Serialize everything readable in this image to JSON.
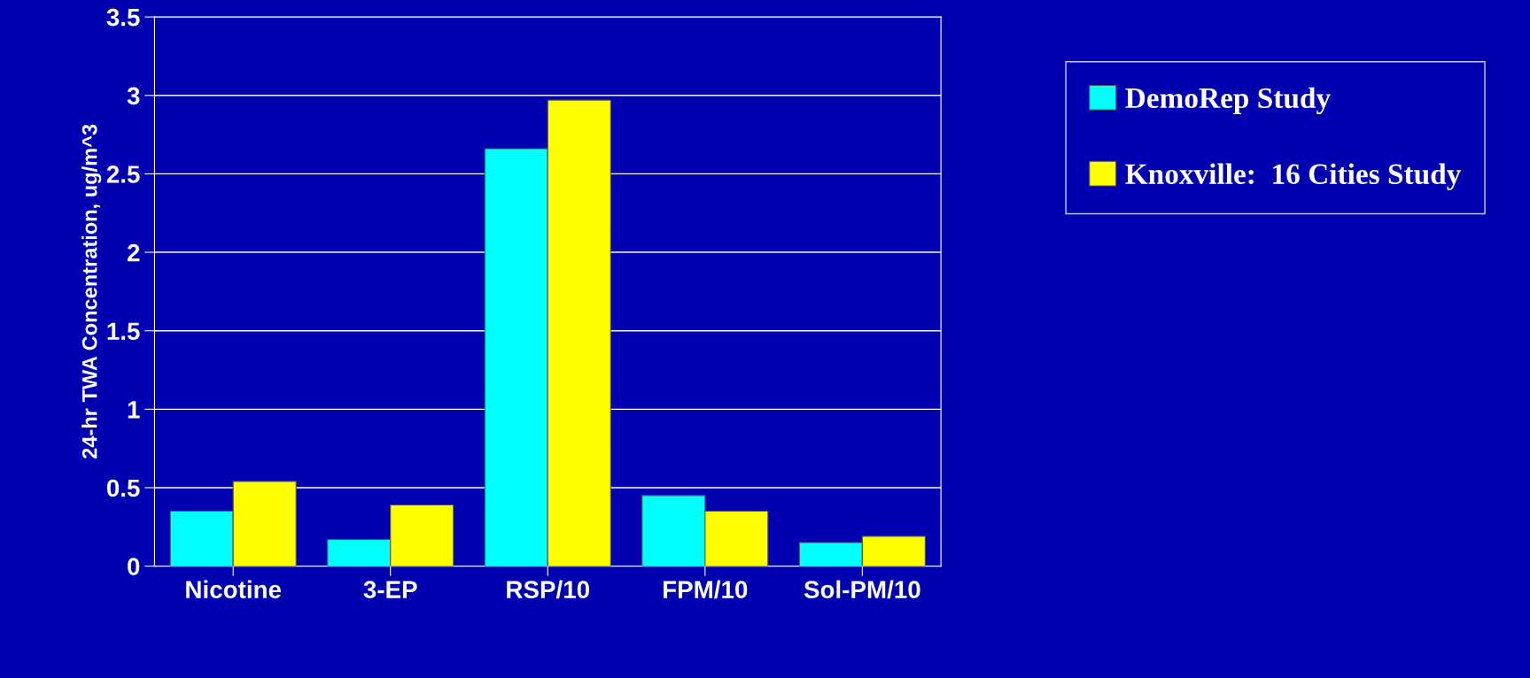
{
  "chart_data": {
    "type": "bar",
    "ylabel": "24-hr TWA Concentration, ug/m^3",
    "categories": [
      "Nicotine",
      "3-EP",
      "RSP/10",
      "FPM/10",
      "Sol-PM/10"
    ],
    "series": [
      {
        "name": "DemoRep Study",
        "color": "#00ffff",
        "values": [
          0.35,
          0.17,
          2.66,
          0.45,
          0.15
        ]
      },
      {
        "name": "Knoxville:  16 Cities Study",
        "color": "#ffff00",
        "values": [
          0.54,
          0.39,
          2.97,
          0.35,
          0.19
        ]
      }
    ],
    "ylim": [
      0,
      3.5
    ],
    "yticks": [
      0,
      0.5,
      1,
      1.5,
      2,
      2.5,
      3,
      3.5
    ],
    "grid": "y",
    "legend": "right"
  }
}
